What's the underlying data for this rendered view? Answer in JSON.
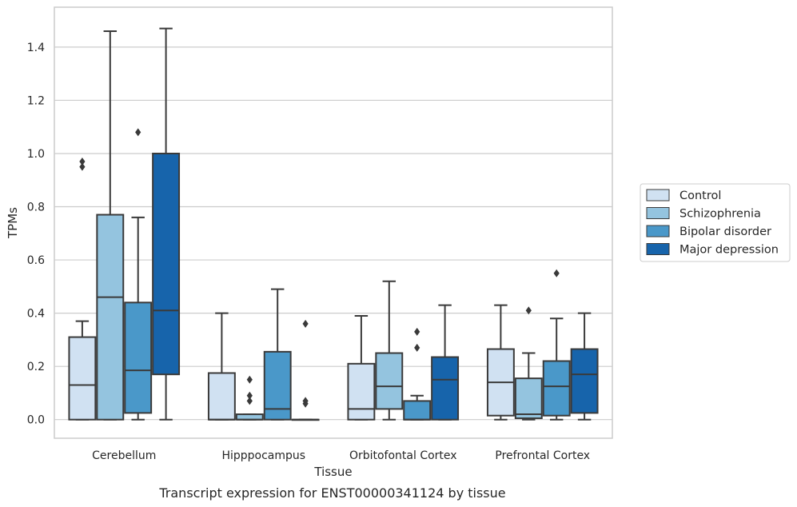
{
  "chart_data": {
    "type": "boxplot",
    "caption": "Transcript expression for ENST00000341124 by tissue",
    "xlabel": "Tissue",
    "ylabel": "TPMs",
    "ylim": [
      -0.07,
      1.55
    ],
    "yticks": [
      0.0,
      0.2,
      0.4,
      0.6,
      0.8,
      1.0,
      1.2,
      1.4
    ],
    "ytick_labels": [
      "0.0",
      "0.2",
      "0.4",
      "0.6",
      "0.8",
      "1.0",
      "1.2",
      "1.4"
    ],
    "grid": "horizontal",
    "legend_position": "outside-right",
    "categories": [
      "Cerebellum",
      "Hipppocampus",
      "Orbitofontal Cortex",
      "Prefrontal Cortex"
    ],
    "series": [
      {
        "name": "Control",
        "color": "#d0e1f2",
        "boxes": [
          {
            "low": 0.0,
            "q1": 0.0,
            "median": 0.13,
            "q3": 0.31,
            "high": 0.37,
            "outliers": [
              0.95,
              0.97
            ]
          },
          {
            "low": 0.0,
            "q1": 0.0,
            "median": 0.0,
            "q3": 0.175,
            "high": 0.4,
            "outliers": []
          },
          {
            "low": 0.0,
            "q1": 0.0,
            "median": 0.04,
            "q3": 0.21,
            "high": 0.39,
            "outliers": []
          },
          {
            "low": 0.0,
            "q1": 0.015,
            "median": 0.14,
            "q3": 0.265,
            "high": 0.43,
            "outliers": []
          }
        ]
      },
      {
        "name": "Schizophrenia",
        "color": "#94c4df",
        "boxes": [
          {
            "low": 0.0,
            "q1": 0.0,
            "median": 0.46,
            "q3": 0.77,
            "high": 1.46,
            "outliers": []
          },
          {
            "low": 0.0,
            "q1": 0.0,
            "median": 0.0,
            "q3": 0.02,
            "high": 0.02,
            "outliers": [
              0.07,
              0.09,
              0.15
            ]
          },
          {
            "low": 0.0,
            "q1": 0.04,
            "median": 0.125,
            "q3": 0.25,
            "high": 0.52,
            "outliers": []
          },
          {
            "low": 0.0,
            "q1": 0.005,
            "median": 0.02,
            "q3": 0.155,
            "high": 0.25,
            "outliers": [
              0.41
            ]
          }
        ]
      },
      {
        "name": "Bipolar disorder",
        "color": "#4a98c9",
        "boxes": [
          {
            "low": 0.0,
            "q1": 0.025,
            "median": 0.185,
            "q3": 0.44,
            "high": 0.76,
            "outliers": [
              1.08
            ]
          },
          {
            "low": 0.0,
            "q1": 0.0,
            "median": 0.04,
            "q3": 0.255,
            "high": 0.49,
            "outliers": []
          },
          {
            "low": 0.0,
            "q1": 0.0,
            "median": 0.0,
            "q3": 0.07,
            "high": 0.09,
            "outliers": [
              0.27,
              0.33
            ]
          },
          {
            "low": 0.0,
            "q1": 0.015,
            "median": 0.125,
            "q3": 0.22,
            "high": 0.38,
            "outliers": [
              0.55
            ]
          }
        ]
      },
      {
        "name": "Major depression",
        "color": "#1764ab",
        "boxes": [
          {
            "low": 0.0,
            "q1": 0.17,
            "median": 0.41,
            "q3": 1.0,
            "high": 1.47,
            "outliers": []
          },
          {
            "low": 0.0,
            "q1": 0.0,
            "median": 0.0,
            "q3": 0.0,
            "high": 0.0,
            "outliers": [
              0.06,
              0.07,
              0.36
            ]
          },
          {
            "low": 0.0,
            "q1": 0.0,
            "median": 0.15,
            "q3": 0.235,
            "high": 0.43,
            "outliers": []
          },
          {
            "low": 0.0,
            "q1": 0.025,
            "median": 0.17,
            "q3": 0.265,
            "high": 0.4,
            "outliers": []
          }
        ]
      }
    ]
  }
}
